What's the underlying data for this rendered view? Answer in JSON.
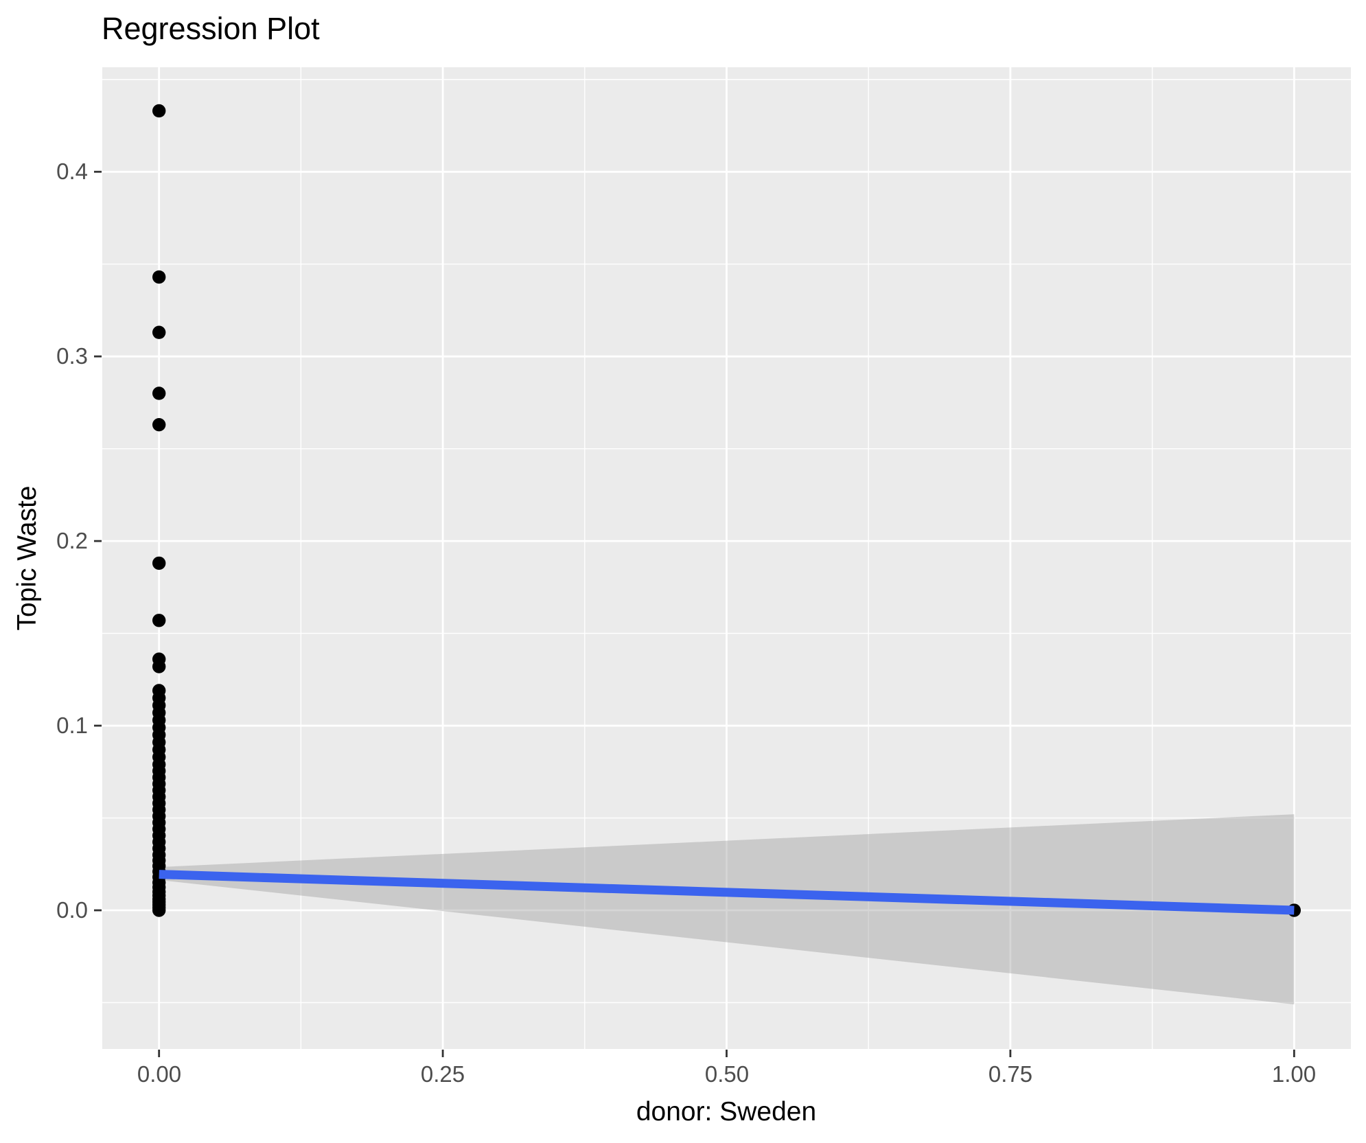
{
  "title": "Regression Plot",
  "axes": {
    "x": {
      "label": "donor: Sweden",
      "ticks": [
        "0.00",
        "0.25",
        "0.50",
        "0.75",
        "1.00"
      ]
    },
    "y": {
      "label": "Topic Waste",
      "ticks": [
        "0.4",
        "0.3",
        "0.2",
        "0.1",
        "0.0"
      ]
    }
  },
  "chart_data": {
    "type": "scatter",
    "title": "Regression Plot",
    "xlabel": "donor: Sweden",
    "ylabel": "Topic Waste",
    "xlim": [
      -0.05,
      1.05
    ],
    "ylim": [
      -0.0751,
      0.4566
    ],
    "x_tick_values": [
      0,
      0.25,
      0.5,
      0.75,
      1.0
    ],
    "y_tick_values": [
      0,
      0.1,
      0.2,
      0.3,
      0.4
    ],
    "grid": "major-and-minor",
    "legend": "none",
    "series": [
      {
        "name": "observations",
        "type": "points",
        "cluster_x": 0,
        "cluster_y": [
          0.433,
          0.343,
          0.313,
          0.28,
          0.263,
          0.188,
          0.157,
          0.136,
          0.132,
          0.119,
          0.115,
          0.111,
          0.107,
          0.103,
          0.099,
          0.095,
          0.091,
          0.087,
          0.083,
          0.079,
          0.0755,
          0.072,
          0.0685,
          0.065,
          0.0615,
          0.058,
          0.0545,
          0.051,
          0.0475,
          0.044,
          0.0405,
          0.037,
          0.0335,
          0.03,
          0.027,
          0.024,
          0.021,
          0.018,
          0.015,
          0.0125,
          0.01,
          0.008,
          0.006,
          0.0045,
          0.003,
          0.0015,
          0.0
        ],
        "isolated_points": [
          {
            "x": 1.0,
            "y": 0.0
          }
        ]
      },
      {
        "name": "regression-line",
        "type": "line",
        "x": [
          0,
          1
        ],
        "y": [
          0.0195,
          0.0
        ]
      },
      {
        "name": "confidence-band",
        "type": "ribbon",
        "x": [
          0,
          1
        ],
        "y_upper": [
          0.0234,
          0.052
        ],
        "y_lower": [
          0.0164,
          -0.051
        ]
      }
    ]
  },
  "style": {
    "panel_background": "#EBEBEB",
    "grid_color": "#FFFFFF",
    "point_color": "#000000",
    "line_color": "#3B63EE",
    "band_color": "#999999",
    "band_opacity": 0.4,
    "tick_label_color": "#4D4D4D",
    "tick_mark_color": "#333333"
  }
}
